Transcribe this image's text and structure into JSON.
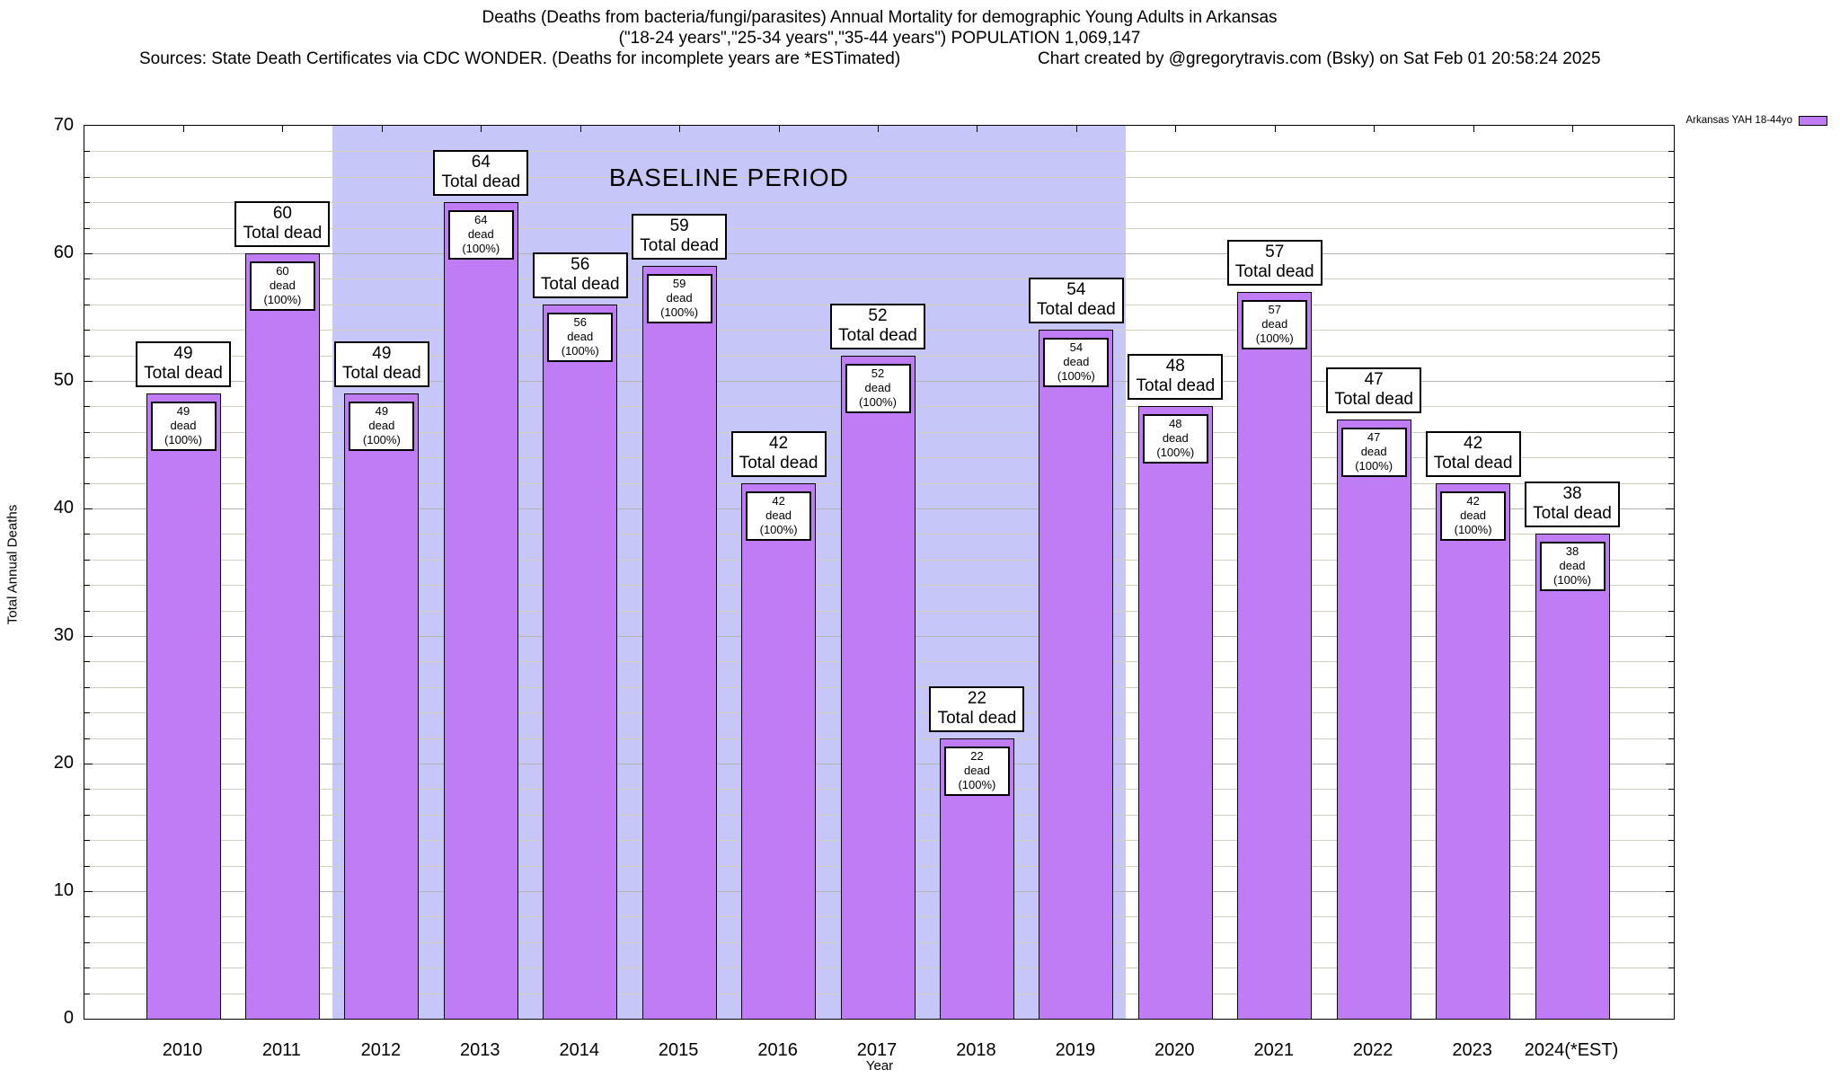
{
  "header": {
    "title_line1": "Deaths (Deaths from bacteria/fungi/parasites) Annual Mortality for demographic Young Adults in Arkansas",
    "title_line2": "(\"18-24 years\",\"25-34 years\",\"35-44 years\") POPULATION 1,069,147",
    "sources_line": "Sources: State Death Certificates via CDC WONDER. (Deaths for incomplete years are *ESTimated)",
    "credit_line": "Chart created by @gregorytravis.com (Bsky) on Sat Feb 01 20:58:24 2025"
  },
  "legend": {
    "label": "Arkansas YAH 18-44yo",
    "swatch_color": "#bf7cf4"
  },
  "chart_data": {
    "type": "bar",
    "title": "Deaths (Deaths from bacteria/fungi/parasites) Annual Mortality for demographic Young Adults in Arkansas",
    "xlabel": "Year",
    "ylabel": "Total Annual Deaths",
    "ylim": [
      0,
      70
    ],
    "y_major_ticks": [
      0,
      10,
      20,
      30,
      40,
      50,
      60,
      70
    ],
    "y_minor_step": 2,
    "grid": true,
    "legend_position": "top-right",
    "categories": [
      "2010",
      "2011",
      "2012",
      "2013",
      "2014",
      "2015",
      "2016",
      "2017",
      "2018",
      "2019",
      "2020",
      "2021",
      "2022",
      "2023",
      "2024(*EST)"
    ],
    "series": [
      {
        "name": "Arkansas YAH 18-44yo",
        "values": [
          49,
          60,
          49,
          64,
          56,
          59,
          42,
          52,
          22,
          54,
          48,
          57,
          47,
          42,
          38
        ]
      }
    ],
    "bar_color": "#bf7cf4",
    "bar_outline_color": "#000000",
    "annotations": {
      "top_box_line2": "Total dead",
      "inner_box_line2": "dead (100%)"
    },
    "baseline_band": {
      "label": "BASELINE PERIOD",
      "start_category": "2012",
      "end_category": "2019",
      "start_index": 2,
      "end_index": 9,
      "color": "#c6c6f8"
    }
  }
}
